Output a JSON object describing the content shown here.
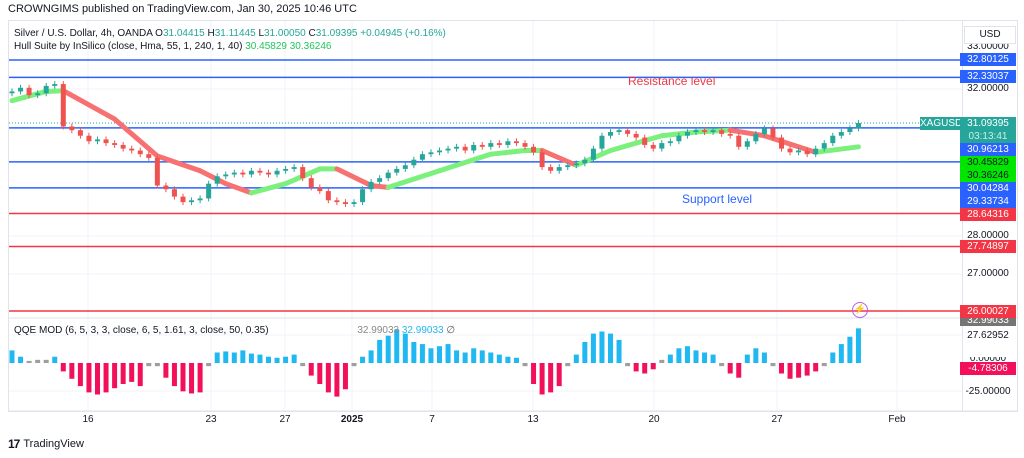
{
  "header": {
    "published": "CROWNGIMS published on TradingView.com, Jan 30, 2025 10:46 UTC"
  },
  "legend": {
    "symbol": "Silver / U.S. Dollar, 4h, OANDA",
    "o_label": "O",
    "o": "31.04415",
    "h_label": "H",
    "h": "31.11445",
    "l_label": "L",
    "l": "31.00050",
    "c_label": "C",
    "c": "31.09395",
    "change": "+0.04945 (+0.16%)",
    "hull_label": "Hull Suite by InSilico (close, Hma, 55, 1, 240, 1, 40)",
    "hull_v1": "30.45829",
    "hull_v2": "30.36246",
    "qqe_label": "QQE MOD (6, 5, 3, 3, close, 6, 5, 1.61, 3, close, 50, 0.35)",
    "qqe_v1": "32.99033",
    "qqe_v2": "32.99033",
    "qqe_v3": "∅"
  },
  "annotations": {
    "resistance": "Resistance level",
    "support": "Support level",
    "ticker": "XAGUSD"
  },
  "axis": {
    "currency": "USD",
    "price_labels": [
      {
        "text": "33.00000",
        "kind": "text"
      },
      {
        "text": "32.80125",
        "kind": "blue"
      },
      {
        "text": "32.33037",
        "kind": "blue"
      },
      {
        "text": "32.00000",
        "kind": "text"
      },
      {
        "text": "31.09395",
        "kind": "teal"
      },
      {
        "text": "03:13:41",
        "kind": "teal"
      },
      {
        "text": "30.96213",
        "kind": "blue"
      },
      {
        "text": "30.45829",
        "kind": "green"
      },
      {
        "text": "30.36246",
        "kind": "green"
      },
      {
        "text": "30.04284",
        "kind": "blue"
      },
      {
        "text": "29.33734",
        "kind": "blue"
      },
      {
        "text": "28.64316",
        "kind": "red"
      },
      {
        "text": "28.00000",
        "kind": "text"
      },
      {
        "text": "27.74897",
        "kind": "red"
      },
      {
        "text": "27.00000",
        "kind": "text"
      },
      {
        "text": "26.00027",
        "kind": "red"
      },
      {
        "text": "32.99033",
        "kind": "gray"
      },
      {
        "text": "27.62952",
        "kind": "text"
      },
      {
        "text": "0.00000",
        "kind": "text"
      },
      {
        "text": "-4.78306",
        "kind": "pink"
      },
      {
        "text": "-25.00000",
        "kind": "text"
      }
    ],
    "time_labels": [
      "16",
      "23",
      "27",
      "2025",
      "7",
      "13",
      "20",
      "27",
      "Feb"
    ]
  },
  "footer": {
    "brand": "TradingView"
  },
  "colors": {
    "blue": "#2962ff",
    "red": "#f23645",
    "teal": "#26a69a",
    "green": "#00e600",
    "up": "#26a69a",
    "down": "#ef5350",
    "hull_green": "#7cf07c",
    "hull_red": "#f87171",
    "qqe_blue": "#1fb8f0",
    "qqe_pink": "#f2105a",
    "qqe_gray": "#9e9e9e"
  },
  "chart_data": {
    "type": "candlestick",
    "title": "Silver / U.S. Dollar, 4h, OANDA",
    "ylim": [
      25.5,
      33.1
    ],
    "horizontal_levels": {
      "blue": [
        32.80125,
        32.33037,
        30.96213,
        30.04284,
        29.33734
      ],
      "red": [
        28.64316,
        27.74897,
        26.00027
      ]
    },
    "closes": [
      31.95,
      32.05,
      31.85,
      31.9,
      32.1,
      32.15,
      31.0,
      30.9,
      30.75,
      30.6,
      30.65,
      30.55,
      30.5,
      30.4,
      30.35,
      30.25,
      30.15,
      29.4,
      29.3,
      29.1,
      28.95,
      29.0,
      29.05,
      29.45,
      29.65,
      29.7,
      29.75,
      29.7,
      29.8,
      29.75,
      29.7,
      29.8,
      29.85,
      29.9,
      29.6,
      29.35,
      29.25,
      29.0,
      28.95,
      28.9,
      28.95,
      29.3,
      29.5,
      29.6,
      29.75,
      29.85,
      29.95,
      30.1,
      30.25,
      30.3,
      30.35,
      30.4,
      30.45,
      30.35,
      30.5,
      30.45,
      30.55,
      30.5,
      30.6,
      30.55,
      30.45,
      30.3,
      29.9,
      29.8,
      29.9,
      29.95,
      30.0,
      30.1,
      30.4,
      30.75,
      30.85,
      30.9,
      30.8,
      30.7,
      30.5,
      30.4,
      30.55,
      30.6,
      30.75,
      30.85,
      30.9,
      30.85,
      30.9,
      30.8,
      30.75,
      30.45,
      30.6,
      30.8,
      30.95,
      30.7,
      30.4,
      30.3,
      30.35,
      30.25,
      30.4,
      30.55,
      30.75,
      30.85,
      30.95,
      31.09395
    ],
    "hull": [
      {
        "i": 0,
        "v": 31.7,
        "c": "green"
      },
      {
        "i": 4,
        "v": 31.95,
        "c": "green"
      },
      {
        "i": 6,
        "v": 31.97,
        "c": "red"
      },
      {
        "i": 12,
        "v": 31.2,
        "c": "red"
      },
      {
        "i": 17,
        "v": 30.2,
        "c": "red"
      },
      {
        "i": 22,
        "v": 29.8,
        "c": "red"
      },
      {
        "i": 25,
        "v": 29.45,
        "c": "red"
      },
      {
        "i": 28,
        "v": 29.2,
        "c": "green"
      },
      {
        "i": 32,
        "v": 29.45,
        "c": "green"
      },
      {
        "i": 36,
        "v": 29.85,
        "c": "green"
      },
      {
        "i": 38,
        "v": 29.85,
        "c": "red"
      },
      {
        "i": 42,
        "v": 29.4,
        "c": "red"
      },
      {
        "i": 44,
        "v": 29.35,
        "c": "green"
      },
      {
        "i": 50,
        "v": 29.8,
        "c": "green"
      },
      {
        "i": 56,
        "v": 30.25,
        "c": "green"
      },
      {
        "i": 60,
        "v": 30.35,
        "c": "green"
      },
      {
        "i": 62,
        "v": 30.35,
        "c": "red"
      },
      {
        "i": 66,
        "v": 29.95,
        "c": "green"
      },
      {
        "i": 70,
        "v": 30.35,
        "c": "green"
      },
      {
        "i": 76,
        "v": 30.75,
        "c": "green"
      },
      {
        "i": 80,
        "v": 30.85,
        "c": "green"
      },
      {
        "i": 84,
        "v": 30.9,
        "c": "red"
      },
      {
        "i": 88,
        "v": 30.75,
        "c": "red"
      },
      {
        "i": 94,
        "v": 30.3,
        "c": "green"
      },
      {
        "i": 99,
        "v": 30.45,
        "c": "green"
      }
    ],
    "qqe_histogram": [
      12,
      6,
      2,
      3,
      3,
      6,
      -8,
      -15,
      -22,
      -28,
      -30,
      -28,
      -24,
      -20,
      -18,
      -22,
      -3,
      -3,
      -14,
      -22,
      -27,
      -29,
      -28,
      -3,
      10,
      11,
      10,
      12,
      9,
      8,
      6,
      5,
      6,
      8,
      -3,
      -12,
      -20,
      -28,
      -32,
      -25,
      -3,
      6,
      12,
      22,
      26,
      32,
      28,
      20,
      18,
      14,
      16,
      18,
      12,
      10,
      14,
      12,
      10,
      8,
      6,
      5,
      -3,
      -20,
      -30,
      -28,
      -22,
      -3,
      8,
      20,
      28,
      30,
      28,
      22,
      -3,
      -8,
      -10,
      -6,
      3,
      8,
      14,
      16,
      12,
      10,
      8,
      -3,
      -10,
      -14,
      8,
      14,
      10,
      -3,
      -10,
      -15,
      -14,
      -12,
      -8,
      -3,
      10,
      18,
      25,
      33
    ],
    "x_tick_labels": [
      "16",
      "23",
      "27",
      "2025",
      "7",
      "13",
      "20",
      "27",
      "Feb"
    ]
  }
}
